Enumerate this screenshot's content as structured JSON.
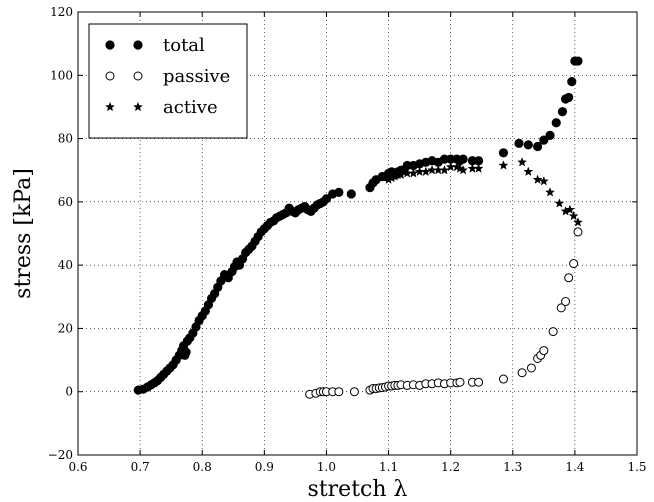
{
  "chart_data": {
    "type": "scatter",
    "xlabel": "stretch λ",
    "ylabel": "stress [kPa]",
    "xlim": [
      0.6,
      1.5
    ],
    "ylim": [
      -20,
      120
    ],
    "grid": true,
    "legend_position": "top-left",
    "x_ticks": [
      "0.6",
      "0.7",
      "0.8",
      "0.9",
      "1.0",
      "1.1",
      "1.2",
      "1.3",
      "1.4",
      "1.5"
    ],
    "y_ticks": [
      "−20",
      "0",
      "20",
      "40",
      "60",
      "80",
      "100",
      "120"
    ],
    "series": [
      {
        "name": "total",
        "marker": "filled-circle",
        "color": "#000000",
        "x": [
          0.697,
          0.705,
          0.712,
          0.718,
          0.723,
          0.728,
          0.733,
          0.738,
          0.743,
          0.748,
          0.753,
          0.758,
          0.763,
          0.767,
          0.77,
          0.772,
          0.774,
          0.776,
          0.78,
          0.785,
          0.79,
          0.795,
          0.8,
          0.805,
          0.81,
          0.815,
          0.82,
          0.825,
          0.83,
          0.836,
          0.842,
          0.848,
          0.852,
          0.856,
          0.86,
          0.865,
          0.87,
          0.875,
          0.88,
          0.885,
          0.89,
          0.895,
          0.9,
          0.905,
          0.91,
          0.915,
          0.92,
          0.925,
          0.93,
          0.935,
          0.94,
          0.945,
          0.95,
          0.955,
          0.96,
          0.965,
          0.97,
          0.975,
          0.98,
          0.985,
          0.99,
          0.995,
          1.0,
          1.01,
          1.02,
          1.04,
          1.07,
          1.075,
          1.08,
          1.09,
          1.095,
          1.1,
          1.105,
          1.11,
          1.115,
          1.12,
          1.125,
          1.13,
          1.14,
          1.15,
          1.16,
          1.17,
          1.18,
          1.19,
          1.2,
          1.21,
          1.215,
          1.22,
          1.235,
          1.245,
          1.285,
          1.31,
          1.325,
          1.34,
          1.35,
          1.36,
          1.37,
          1.38,
          1.385,
          1.39,
          1.395,
          1.4,
          1.405
        ],
        "y": [
          0.5,
          0.8,
          1.5,
          2.2,
          2.8,
          3.5,
          4.5,
          5.5,
          6.5,
          7.5,
          8.5,
          10.0,
          11.5,
          13.0,
          14.5,
          11.5,
          12.5,
          16.0,
          17.0,
          18.5,
          20.5,
          22.5,
          24.0,
          25.5,
          27.5,
          29.5,
          31.0,
          33.0,
          35.0,
          37.0,
          36.0,
          38.0,
          39.5,
          41.0,
          40.0,
          42.0,
          44.0,
          45.0,
          46.0,
          47.5,
          49.0,
          50.5,
          51.5,
          52.5,
          53.5,
          54.0,
          55.0,
          55.5,
          56.0,
          56.5,
          58.0,
          57.0,
          56.5,
          57.5,
          58.0,
          58.5,
          57.5,
          57.0,
          58.0,
          59.0,
          59.5,
          60.0,
          61.0,
          62.5,
          63.0,
          62.5,
          64.5,
          66.0,
          67.0,
          68.0,
          68.0,
          69.0,
          69.5,
          68.5,
          69.5,
          70.0,
          70.0,
          71.5,
          71.5,
          72.0,
          72.5,
          73.0,
          72.5,
          73.5,
          73.5,
          73.5,
          73.0,
          73.5,
          73.0,
          73.0,
          75.5,
          78.5,
          78.0,
          77.5,
          79.5,
          81.0,
          85.0,
          88.5,
          92.5,
          93.0,
          98.0,
          104.5,
          104.5
        ]
      },
      {
        "name": "passive",
        "marker": "open-circle",
        "color": "#000000",
        "x": [
          0.973,
          0.983,
          0.99,
          0.995,
          1.0,
          1.01,
          1.02,
          1.045,
          1.07,
          1.075,
          1.08,
          1.085,
          1.09,
          1.095,
          1.1,
          1.105,
          1.11,
          1.115,
          1.12,
          1.13,
          1.14,
          1.15,
          1.16,
          1.17,
          1.18,
          1.19,
          1.2,
          1.21,
          1.215,
          1.235,
          1.245,
          1.285,
          1.315,
          1.33,
          1.34,
          1.345,
          1.35,
          1.365,
          1.378,
          1.385,
          1.39,
          1.398,
          1.405
        ],
        "y": [
          -0.8,
          -0.5,
          0.0,
          0.0,
          0.0,
          0.0,
          0.0,
          0.0,
          0.5,
          1.0,
          1.0,
          1.2,
          1.3,
          1.5,
          1.8,
          1.8,
          2.0,
          2.0,
          2.2,
          2.0,
          2.2,
          2.0,
          2.5,
          2.5,
          2.8,
          2.5,
          2.8,
          2.8,
          3.0,
          3.0,
          3.0,
          4.0,
          6.0,
          7.5,
          10.5,
          11.5,
          13.0,
          19.0,
          26.5,
          28.5,
          36.0,
          40.5,
          50.5
        ]
      },
      {
        "name": "active",
        "marker": "star",
        "color": "#000000",
        "x": [
          1.1,
          1.105,
          1.11,
          1.115,
          1.12,
          1.13,
          1.14,
          1.15,
          1.16,
          1.17,
          1.18,
          1.19,
          1.2,
          1.21,
          1.215,
          1.22,
          1.235,
          1.245,
          1.285,
          1.315,
          1.325,
          1.34,
          1.35,
          1.36,
          1.375,
          1.385,
          1.392,
          1.398,
          1.405
        ],
        "y": [
          67.0,
          67.5,
          68.0,
          68.5,
          68.5,
          69.0,
          69.0,
          69.5,
          69.5,
          70.0,
          70.0,
          70.0,
          71.0,
          71.0,
          70.5,
          70.0,
          70.5,
          70.5,
          71.5,
          72.5,
          69.5,
          67.0,
          66.5,
          63.0,
          59.5,
          57.0,
          57.5,
          55.5,
          53.5
        ]
      }
    ]
  }
}
